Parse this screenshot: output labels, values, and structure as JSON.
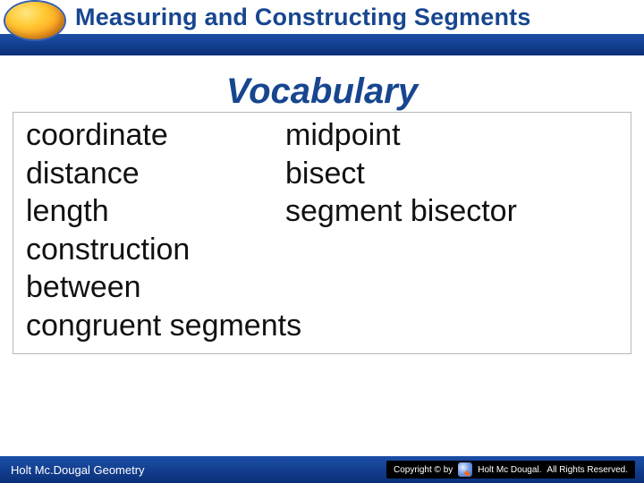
{
  "header": {
    "title": "Measuring and Constructing Segments",
    "title_color": "#17468f",
    "bar_gradient_top": "#1c4fa8",
    "bar_gradient_bottom": "#0a2f78"
  },
  "vocab": {
    "heading": "Vocabulary",
    "heading_color": "#17468f",
    "rows": [
      {
        "left": "coordinate",
        "right": "midpoint"
      },
      {
        "left": "distance",
        "right": "bisect"
      },
      {
        "left": "length",
        "right": "segment bisector"
      },
      {
        "left": "construction",
        "right": ""
      },
      {
        "left": "between",
        "right": ""
      }
    ],
    "full_line": "congruent segments",
    "box_border_color": "#b8b8b8",
    "text_color": "#111111",
    "font_size_pt": 26
  },
  "footer": {
    "left": "Holt Mc.Dougal Geometry",
    "copyright_prefix": "Copyright © by",
    "brand": "Holt Mc Dougal.",
    "rights": "All Rights Reserved.",
    "bg_gradient_top": "#1c4fa8",
    "bg_gradient_bottom": "#0a2f78"
  }
}
